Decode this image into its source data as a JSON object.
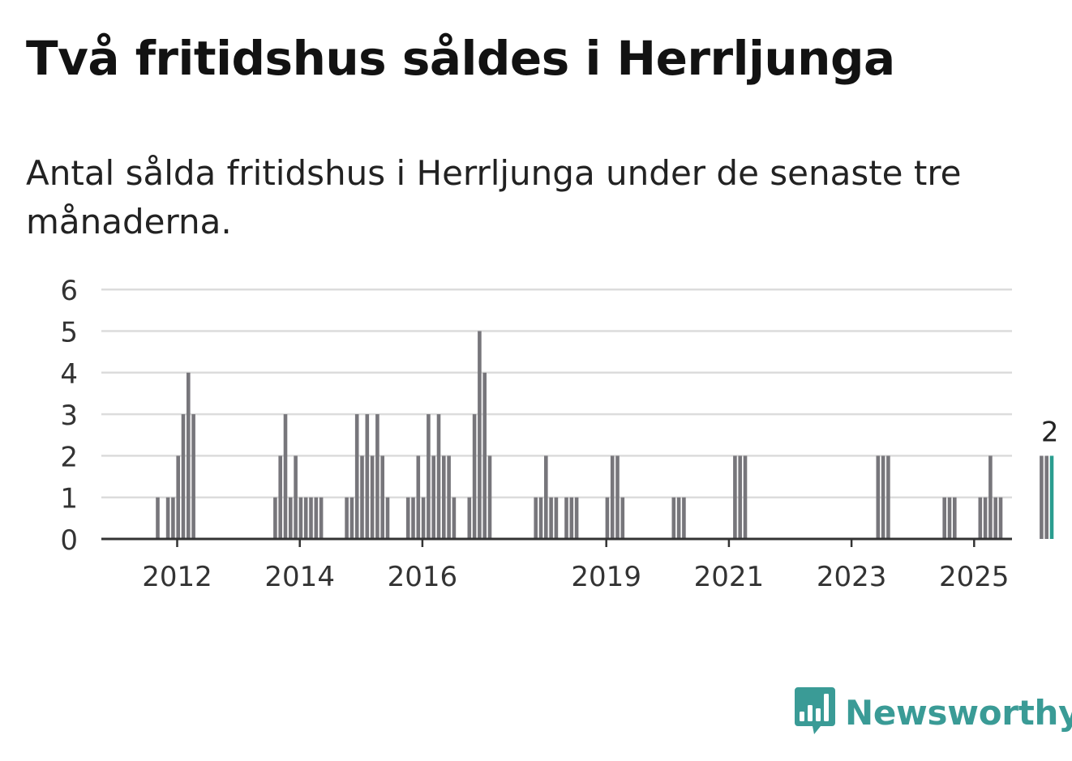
{
  "header": {
    "title": "Två fritidshus såldes i Herrljunga",
    "subtitle": "Antal sålda fritidshus i Herrljunga under de senaste tre månaderna."
  },
  "brand": {
    "name": "Newsworthy",
    "logo_icon": "bar-chart-speech-bubble-icon",
    "color": "#3a9b96"
  },
  "chart_data": {
    "type": "bar",
    "title": "",
    "xlabel": "",
    "ylabel": "",
    "ylim": [
      0,
      6
    ],
    "yticks": [
      0,
      1,
      2,
      3,
      4,
      5,
      6
    ],
    "xtick_labels": [
      "2012",
      "2014",
      "2016",
      "2019",
      "2021",
      "2023",
      "2025"
    ],
    "grid": true,
    "bar_color": "#77767b",
    "highlight_color": "#2a9d8f",
    "highlight_label": "2",
    "series": [
      {
        "values": [
          0,
          0,
          0,
          0,
          0,
          0,
          0,
          0,
          1,
          0,
          1,
          1,
          2,
          3,
          4,
          3,
          0,
          0,
          0,
          0,
          0,
          0,
          0,
          0,
          0,
          0,
          0,
          0,
          0,
          0,
          0,
          1,
          2,
          3,
          1,
          2,
          1,
          1,
          1,
          1,
          1,
          0,
          0,
          0,
          0,
          1,
          1,
          3,
          2,
          3,
          2,
          3,
          2,
          1,
          0,
          0,
          0,
          1,
          1,
          2,
          1,
          3,
          2,
          3,
          2,
          2,
          1,
          0,
          0,
          1,
          3,
          5,
          4,
          2,
          0,
          0,
          0,
          0,
          0,
          0,
          0,
          0,
          1,
          1,
          2,
          1,
          1,
          0,
          1,
          1,
          1,
          0,
          0,
          0,
          0,
          0,
          1,
          2,
          2,
          1,
          0,
          0,
          0,
          0,
          0,
          0,
          0,
          0,
          0,
          1,
          1,
          1,
          0,
          0,
          0,
          0,
          0,
          0,
          0,
          0,
          0,
          2,
          2,
          2,
          0,
          0,
          0,
          0,
          0,
          0,
          0,
          0,
          0,
          0,
          0,
          0,
          0,
          0,
          0,
          0,
          0,
          0,
          0,
          0,
          0,
          0,
          0,
          0,
          0,
          2,
          2,
          2,
          0,
          0,
          0,
          0,
          0,
          0,
          0,
          0,
          0,
          0,
          1,
          1,
          1,
          0,
          0,
          0,
          0,
          1,
          1,
          2,
          1,
          1,
          0,
          0,
          0,
          0,
          0,
          0,
          0,
          2,
          2,
          2
        ]
      }
    ]
  }
}
